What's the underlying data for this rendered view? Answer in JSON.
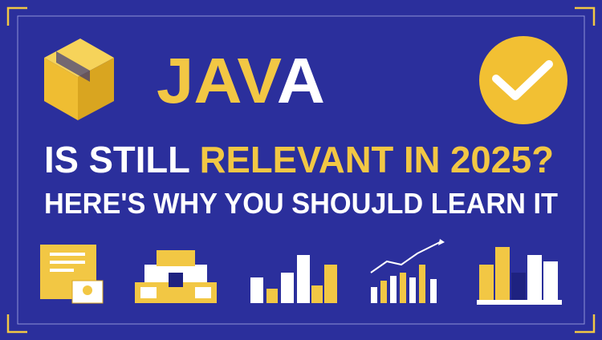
{
  "headline": {
    "segments": [
      "JAV",
      "A"
    ]
  },
  "question": {
    "segments": [
      "IS  STILL ",
      "RELEVANT IN 2025?"
    ]
  },
  "subtitle": "HERE'S WHY YOU SHOUJLD LEARN IT"
}
